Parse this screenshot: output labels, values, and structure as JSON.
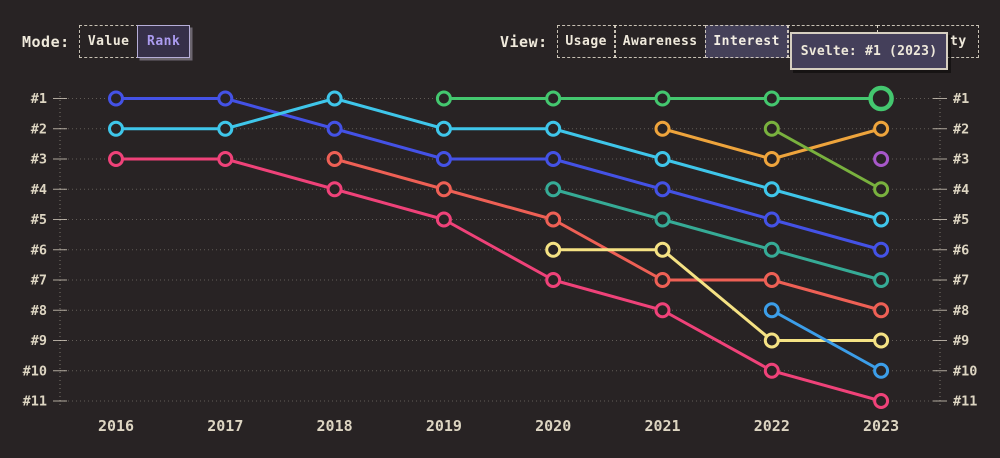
{
  "controls": {
    "mode": {
      "label": "Mode:",
      "options": [
        {
          "label": "Value",
          "selected": false
        },
        {
          "label": "Rank",
          "selected": true
        }
      ]
    },
    "view": {
      "label": "View:",
      "options": [
        {
          "label": "Usage",
          "selected": false
        },
        {
          "label": "Awareness",
          "selected": false
        },
        {
          "label": "Interest",
          "selected": true
        }
      ],
      "obscured_option_visible_text": "ty"
    }
  },
  "tooltip": {
    "text": "Svelte: #1 (2023)"
  },
  "chart_data": {
    "type": "line",
    "subtype": "bump-rank-chart",
    "x": [
      2016,
      2017,
      2018,
      2019,
      2020,
      2021,
      2022,
      2023
    ],
    "y_axis": {
      "rank_labels": [
        "#1",
        "#2",
        "#3",
        "#4",
        "#5",
        "#6",
        "#7",
        "#8",
        "#9",
        "#10",
        "#11"
      ],
      "shown_left": true,
      "shown_right": true,
      "direction": "rank 1 at top"
    },
    "grid": "horizontal dotted lines per rank, dotted vertical axis lines left and right",
    "legend_position": "none",
    "series": [
      {
        "name": "series-blue",
        "color": "#4452e6",
        "ranks": [
          1,
          1,
          2,
          3,
          3,
          4,
          5,
          6
        ]
      },
      {
        "name": "series-cyan",
        "color": "#3fc6ea",
        "ranks": [
          2,
          2,
          1,
          2,
          2,
          3,
          4,
          5
        ]
      },
      {
        "name": "series-pink",
        "color": "#ef4279",
        "ranks": [
          3,
          3,
          4,
          5,
          7,
          8,
          10,
          11
        ]
      },
      {
        "name": "series-red",
        "color": "#ee6055",
        "ranks": [
          null,
          null,
          3,
          4,
          5,
          7,
          7,
          8
        ]
      },
      {
        "name": "Svelte",
        "color": "#44c76f",
        "ranks": [
          null,
          null,
          null,
          1,
          1,
          1,
          1,
          1
        ]
      },
      {
        "name": "series-teal",
        "color": "#36ab96",
        "ranks": [
          null,
          null,
          null,
          null,
          4,
          5,
          6,
          7
        ]
      },
      {
        "name": "series-yellow",
        "color": "#f5e284",
        "ranks": [
          null,
          null,
          null,
          null,
          6,
          6,
          9,
          9
        ]
      },
      {
        "name": "series-orange",
        "color": "#eea43c",
        "ranks": [
          null,
          null,
          null,
          null,
          null,
          2,
          3,
          2
        ]
      },
      {
        "name": "series-lime",
        "color": "#79b13e",
        "ranks": [
          null,
          null,
          null,
          null,
          null,
          null,
          2,
          4
        ]
      },
      {
        "name": "series-sky",
        "color": "#3c9ee9",
        "ranks": [
          null,
          null,
          null,
          null,
          null,
          null,
          8,
          10
        ]
      },
      {
        "name": "series-purple",
        "color": "#a757c9",
        "ranks": [
          null,
          null,
          null,
          null,
          null,
          null,
          null,
          3
        ]
      }
    ],
    "highlight": {
      "series": "Svelte",
      "year": 2023,
      "rank": 1
    }
  },
  "colors": {
    "background": "#282324",
    "text_cream": "#ddd5c2",
    "grid": "rgba(222,214,197,0.32)",
    "selected_mode_bg": "#363049",
    "selected_mode_text": "#ab9bf0",
    "selected_view_bg": "#454159",
    "tooltip_bg": "#443f5a",
    "tooltip_border": "#d6cfc1"
  }
}
